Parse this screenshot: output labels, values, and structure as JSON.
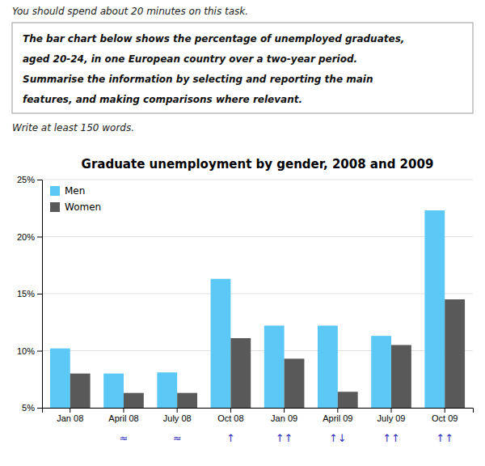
{
  "page_text": {
    "header": "You should spend about 20 minutes on this task.",
    "box": [
      "The bar chart below shows the percentage of unemployed graduates,",
      "aged 20-24, in one European country over a two-year period.",
      "Summarise the information by selecting and reporting the main",
      "features, and making comparisons where relevant."
    ],
    "footer": "Write at least 150 words."
  },
  "chart_data": {
    "type": "bar",
    "title": "Graduate unemployment by gender, 2008 and 2009",
    "categories": [
      "Jan 08",
      "April 08",
      "July 08",
      "Oct 08",
      "Jan 09",
      "April 09",
      "July 09",
      "Oct 09"
    ],
    "series": [
      {
        "name": "Men",
        "color": "#5bc8f5",
        "values": [
          10.2,
          8.0,
          8.1,
          16.3,
          12.2,
          12.2,
          11.3,
          22.3
        ]
      },
      {
        "name": "Women",
        "color": "#595959",
        "values": [
          8.0,
          6.3,
          6.3,
          11.1,
          9.3,
          6.4,
          10.5,
          14.5
        ]
      }
    ],
    "ylim": [
      5,
      25
    ],
    "yticks": [
      {
        "value": 5,
        "label": "5%"
      },
      {
        "value": 10,
        "label": "10%"
      },
      {
        "value": 15,
        "label": "15%"
      },
      {
        "value": 20,
        "label": "20%"
      },
      {
        "value": 25,
        "label": "25%"
      }
    ],
    "grid": true,
    "legend": "top-left",
    "annotations": [
      {
        "category": "April 08",
        "text": "≈",
        "color": "#3333bb"
      },
      {
        "category": "July 08",
        "text": "≈",
        "color": "#3333bb"
      },
      {
        "category": "Oct 08",
        "text": "↑",
        "color": "#3333bb"
      },
      {
        "category": "Jan 09",
        "text": "↑↑",
        "color": "#3333bb"
      },
      {
        "category": "April 09",
        "text": "↑↓",
        "color": "#3333bb"
      },
      {
        "category": "July 09",
        "text": "↑↑",
        "color": "#3333bb"
      },
      {
        "category": "Oct 09",
        "text": "↑↑",
        "color": "#3333bb"
      }
    ]
  }
}
